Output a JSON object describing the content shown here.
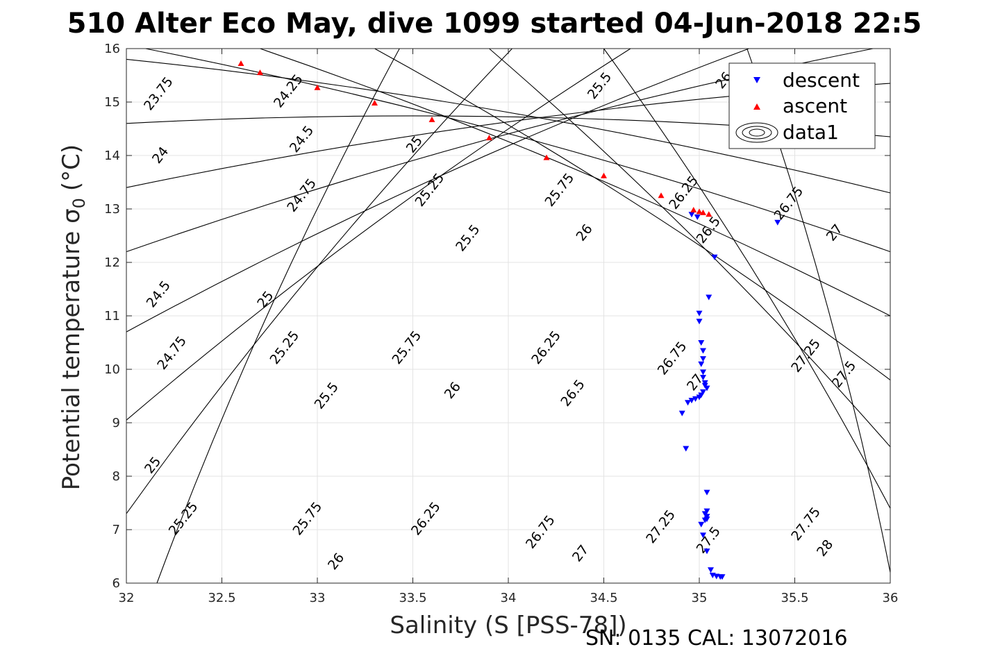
{
  "chart_data": {
    "type": "scatter",
    "title": "510 Alter Eco May, dive 1099 started 04-Jun-2018 22:5",
    "xlabel": "Salinity (S [PSS-78])",
    "ylabel": "Potential temperature σ",
    "ylabel_subscript": "0",
    "ylabel_unit": "(°C)",
    "xlim": [
      32,
      36
    ],
    "ylim": [
      6,
      16
    ],
    "xticks": [
      32,
      32.5,
      33,
      33.5,
      34,
      34.5,
      35,
      35.5,
      36
    ],
    "xtick_labels": [
      "32",
      "32.5",
      "33",
      "33.5",
      "34",
      "34.5",
      "35",
      "35.5",
      "36"
    ],
    "yticks": [
      6,
      7,
      8,
      9,
      10,
      11,
      12,
      13,
      14,
      15,
      16
    ],
    "ytick_labels": [
      "6",
      "7",
      "8",
      "9",
      "10",
      "11",
      "12",
      "13",
      "14",
      "15",
      "16"
    ],
    "grid": true,
    "legend": {
      "position": "top-right",
      "entries": [
        "descent",
        "ascent",
        "data1"
      ]
    },
    "footer": "SN: 0135  CAL: 13072016",
    "contour_lines": [
      {
        "x0": 32.16,
        "y0": 6.0,
        "x1": 33.43,
        "y1": 16.0
      },
      {
        "x0": 32.0,
        "y0": 7.3,
        "x1": 34.02,
        "y1": 16.0
      },
      {
        "x0": 32.0,
        "y0": 9.05,
        "x1": 34.64,
        "y1": 16.0
      },
      {
        "x0": 32.0,
        "y0": 10.7,
        "x1": 35.26,
        "y1": 16.0
      },
      {
        "x0": 32.0,
        "y0": 12.2,
        "x1": 35.91,
        "y1": 16.0
      },
      {
        "x0": 32.0,
        "y0": 13.4,
        "x1": 36.0,
        "y1": 15.35
      },
      {
        "x0": 32.0,
        "y0": 14.6,
        "x1": 36.0,
        "y1": 14.35
      },
      {
        "x0": 32.0,
        "y0": 15.8,
        "x1": 36.0,
        "y1": 13.3
      },
      {
        "x0": 32.1,
        "y0": 16.0,
        "x1": 36.0,
        "y1": 12.2
      },
      {
        "x0": 32.7,
        "y0": 16.0,
        "x1": 36.0,
        "y1": 11.0
      },
      {
        "x0": 33.3,
        "y0": 16.0,
        "x1": 36.0,
        "y1": 9.8
      },
      {
        "x0": 33.9,
        "y0": 16.0,
        "x1": 36.0,
        "y1": 8.55
      },
      {
        "x0": 34.5,
        "y0": 16.0,
        "x1": 36.0,
        "y1": 7.4
      },
      {
        "x0": 35.25,
        "y0": 16.0,
        "x1": 36.0,
        "y1": 6.2
      }
    ],
    "contour_labels": [
      {
        "text": "23.75",
        "x": 32.17,
        "y": 15.15
      },
      {
        "text": "24.25",
        "x": 32.85,
        "y": 15.2
      },
      {
        "text": "25.5",
        "x": 34.48,
        "y": 15.3
      },
      {
        "text": "26",
        "x": 35.13,
        "y": 15.4
      },
      {
        "text": "24",
        "x": 32.18,
        "y": 14.0
      },
      {
        "text": "24.5",
        "x": 32.92,
        "y": 14.3
      },
      {
        "text": "25",
        "x": 33.51,
        "y": 14.2
      },
      {
        "text": "24.75",
        "x": 32.92,
        "y": 13.25
      },
      {
        "text": "25.25",
        "x": 33.59,
        "y": 13.35
      },
      {
        "text": "25.75",
        "x": 34.27,
        "y": 13.35
      },
      {
        "text": "26.25",
        "x": 34.92,
        "y": 13.3
      },
      {
        "text": "26.75",
        "x": 35.47,
        "y": 13.1
      },
      {
        "text": "25.5",
        "x": 33.79,
        "y": 12.45
      },
      {
        "text": "26",
        "x": 34.4,
        "y": 12.55
      },
      {
        "text": "26.5",
        "x": 35.05,
        "y": 12.6
      },
      {
        "text": "27",
        "x": 35.71,
        "y": 12.55
      },
      {
        "text": "24.5",
        "x": 32.17,
        "y": 11.4
      },
      {
        "text": "25",
        "x": 32.73,
        "y": 11.3
      },
      {
        "text": "24.75",
        "x": 32.24,
        "y": 10.3
      },
      {
        "text": "25.25",
        "x": 32.83,
        "y": 10.4
      },
      {
        "text": "25.75",
        "x": 33.47,
        "y": 10.4
      },
      {
        "text": "26.25",
        "x": 34.2,
        "y": 10.4
      },
      {
        "text": "26.75",
        "x": 34.86,
        "y": 10.2
      },
      {
        "text": "27",
        "x": 34.98,
        "y": 9.75
      },
      {
        "text": "27.25",
        "x": 35.56,
        "y": 10.25
      },
      {
        "text": "27.5",
        "x": 35.76,
        "y": 9.9
      },
      {
        "text": "25.5",
        "x": 33.05,
        "y": 9.5
      },
      {
        "text": "26",
        "x": 33.71,
        "y": 9.6
      },
      {
        "text": "26.5",
        "x": 34.34,
        "y": 9.55
      },
      {
        "text": "25",
        "x": 32.14,
        "y": 8.2
      },
      {
        "text": "25.25",
        "x": 32.3,
        "y": 7.2
      },
      {
        "text": "25.75",
        "x": 32.95,
        "y": 7.2
      },
      {
        "text": "26.25",
        "x": 33.57,
        "y": 7.2
      },
      {
        "text": "26.75",
        "x": 34.17,
        "y": 6.95
      },
      {
        "text": "27",
        "x": 34.38,
        "y": 6.55
      },
      {
        "text": "27.25",
        "x": 34.8,
        "y": 7.05
      },
      {
        "text": "27.5",
        "x": 35.05,
        "y": 6.8
      },
      {
        "text": "27.75",
        "x": 35.56,
        "y": 7.1
      },
      {
        "text": "28",
        "x": 35.66,
        "y": 6.65
      },
      {
        "text": "26",
        "x": 33.1,
        "y": 6.4
      }
    ],
    "series": [
      {
        "name": "descent",
        "marker": "triangle-down",
        "color": "#0000ff",
        "x": [
          34.96,
          34.99,
          35.41,
          35.08,
          35.05,
          35.0,
          35.0,
          35.01,
          35.02,
          35.02,
          35.01,
          35.02,
          35.02,
          35.03,
          35.03,
          35.04,
          35.02,
          35.01,
          35.0,
          34.98,
          34.96,
          34.94,
          34.91,
          34.93,
          35.04,
          35.04,
          35.03,
          35.04,
          35.04,
          35.03,
          35.01,
          35.02,
          35.04,
          35.06,
          35.07,
          35.09,
          35.11,
          35.12
        ],
        "y": [
          12.9,
          12.85,
          12.75,
          12.1,
          11.35,
          11.05,
          10.9,
          10.5,
          10.35,
          10.2,
          10.1,
          9.95,
          9.85,
          9.75,
          9.7,
          9.65,
          9.58,
          9.52,
          9.48,
          9.45,
          9.42,
          9.38,
          9.18,
          8.52,
          7.7,
          7.35,
          7.3,
          7.25,
          7.2,
          7.18,
          7.1,
          6.9,
          6.6,
          6.25,
          6.15,
          6.13,
          6.12,
          6.12
        ]
      },
      {
        "name": "ascent",
        "marker": "triangle-up",
        "color": "#ff0000",
        "x": [
          32.6,
          32.7,
          33.0,
          33.3,
          33.6,
          33.9,
          34.2,
          34.5,
          34.8,
          34.97,
          35.0,
          35.02,
          35.05
        ],
        "y": [
          15.72,
          15.55,
          15.27,
          14.98,
          14.67,
          14.33,
          13.96,
          13.62,
          13.25,
          12.98,
          12.95,
          12.93,
          12.9
        ]
      }
    ]
  }
}
